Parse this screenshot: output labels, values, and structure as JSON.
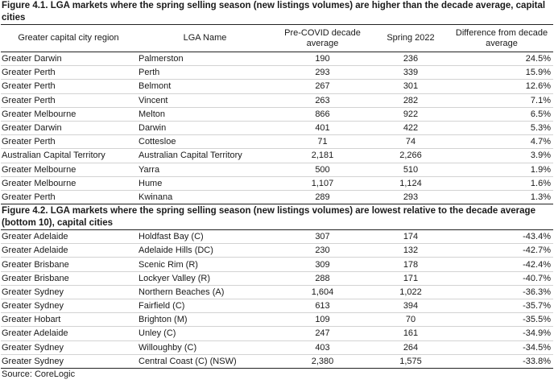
{
  "figure1": {
    "title": "Figure 4.1. LGA markets where the spring selling  season (new listings volumes) are higher than the decade average, capital cities",
    "headers": [
      "Greater capital city region",
      "LGA Name",
      "Pre-COVID decade average",
      "Spring 2022",
      "Difference from decade average"
    ],
    "rows": [
      [
        "Greater Darwin",
        "Palmerston",
        "190",
        "236",
        "24.5%"
      ],
      [
        "Greater Perth",
        "Perth",
        "293",
        "339",
        "15.9%"
      ],
      [
        "Greater Perth",
        "Belmont",
        "267",
        "301",
        "12.6%"
      ],
      [
        "Greater Perth",
        "Vincent",
        "263",
        "282",
        "7.1%"
      ],
      [
        "Greater Melbourne",
        "Melton",
        "866",
        "922",
        "6.5%"
      ],
      [
        "Greater Darwin",
        "Darwin",
        "401",
        "422",
        "5.3%"
      ],
      [
        "Greater Perth",
        "Cottesloe",
        "71",
        "74",
        "4.7%"
      ],
      [
        "Australian Capital Territory",
        "Australian Capital Territory",
        "2,181",
        "2,266",
        "3.9%"
      ],
      [
        "Greater Melbourne",
        "Yarra",
        "500",
        "510",
        "1.9%"
      ],
      [
        "Greater Melbourne",
        "Hume",
        "1,107",
        "1,124",
        "1.6%"
      ],
      [
        "Greater Perth",
        "Kwinana",
        "289",
        "293",
        "1.3%"
      ]
    ]
  },
  "figure2": {
    "title": "Figure 4.2. LGA markets where the spring selling  season (new listings volumes) are lowest relative to the decade average (bottom 10), capital cities",
    "rows": [
      [
        "Greater Adelaide",
        "Holdfast Bay (C)",
        "307",
        "174",
        "-43.4%"
      ],
      [
        "Greater Adelaide",
        "Adelaide Hills (DC)",
        "230",
        "132",
        "-42.7%"
      ],
      [
        "Greater Brisbane",
        "Scenic Rim (R)",
        "309",
        "178",
        "-42.4%"
      ],
      [
        "Greater Brisbane",
        "Lockyer Valley (R)",
        "288",
        "171",
        "-40.7%"
      ],
      [
        "Greater Sydney",
        "Northern Beaches (A)",
        "1,604",
        "1,022",
        "-36.3%"
      ],
      [
        "Greater Sydney",
        "Fairfield (C)",
        "613",
        "394",
        "-35.7%"
      ],
      [
        "Greater Hobart",
        "Brighton (M)",
        "109",
        "70",
        "-35.5%"
      ],
      [
        "Greater Adelaide",
        "Unley (C)",
        "247",
        "161",
        "-34.9%"
      ],
      [
        "Greater Sydney",
        "Willoughby (C)",
        "403",
        "264",
        "-34.5%"
      ],
      [
        "Greater Sydney",
        "Central Coast (C) (NSW)",
        "2,380",
        "1,575",
        "-33.8%"
      ]
    ]
  },
  "source": "Source: CoreLogic"
}
